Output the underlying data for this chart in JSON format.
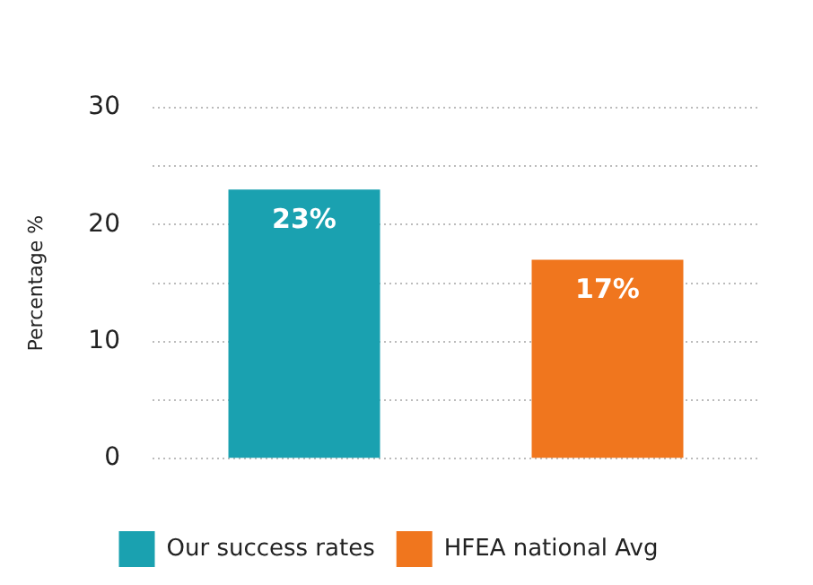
{
  "chart_data": {
    "type": "bar",
    "ylabel": "Percentage %",
    "categories": [
      null,
      null
    ],
    "series": [
      {
        "name": "Our success rates",
        "color": "#1aa1b0",
        "values": [
          23,
          null
        ],
        "value_labels": [
          "23%",
          null
        ]
      },
      {
        "name": "HFEA national Avg",
        "color": "#f0761e",
        "values": [
          null,
          17
        ],
        "value_labels": [
          null,
          "17%"
        ]
      }
    ],
    "ylim": [
      0,
      30
    ],
    "yticks": [
      0,
      {
        "value": 5,
        "label": null
      },
      10,
      {
        "value": 15,
        "label": null
      },
      20,
      {
        "value": 25,
        "label": null
      },
      30
    ],
    "grid": "y",
    "legend": "bottom"
  }
}
